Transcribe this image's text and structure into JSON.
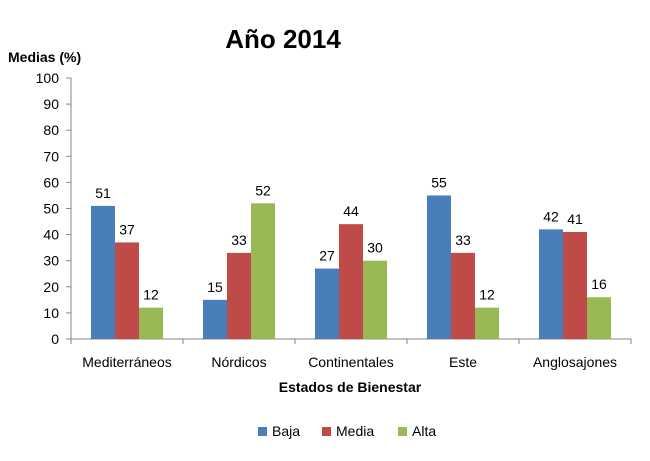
{
  "chart_data": {
    "type": "bar",
    "title": "Año 2014",
    "ylabel": "Medias (%)",
    "xlabel": "Estados de Bienestar",
    "ylim": [
      0,
      100
    ],
    "yticks": [
      0,
      10,
      20,
      30,
      40,
      50,
      60,
      70,
      80,
      90,
      100
    ],
    "grid": false,
    "legend_position": "bottom",
    "categories": [
      "Mediterráneos",
      "Nórdicos",
      "Continentales",
      "Este",
      "Anglosajones"
    ],
    "series": [
      {
        "name": "Baja",
        "color": "#4a7ebb",
        "values": [
          51,
          15,
          27,
          55,
          42
        ]
      },
      {
        "name": "Media",
        "color": "#be4b48",
        "values": [
          37,
          33,
          44,
          33,
          41
        ]
      },
      {
        "name": "Alta",
        "color": "#98b954",
        "values": [
          12,
          52,
          30,
          12,
          16
        ]
      }
    ]
  }
}
